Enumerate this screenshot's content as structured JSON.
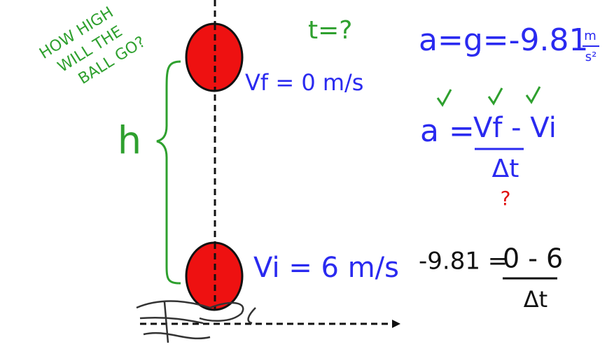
{
  "question": {
    "lines": [
      "HOW HIGH",
      "WILL THE",
      "BALL GO?"
    ]
  },
  "labels": {
    "time": "t=?",
    "height": "h",
    "final_velocity": "Vf = 0 m/s",
    "initial_velocity": "Vi = 6 m/s"
  },
  "gravity": {
    "lhs": "a=g=-9.81",
    "unit_top": "m",
    "unit_bottom": "s²"
  },
  "formula": {
    "lhs": "a =",
    "numerator": "Vf - Vi",
    "denominator": "Δt",
    "unknown": "?"
  },
  "substitution": {
    "lhs": "-9.81 =",
    "numerator": "0 - 6",
    "denominator": "Δt"
  }
}
